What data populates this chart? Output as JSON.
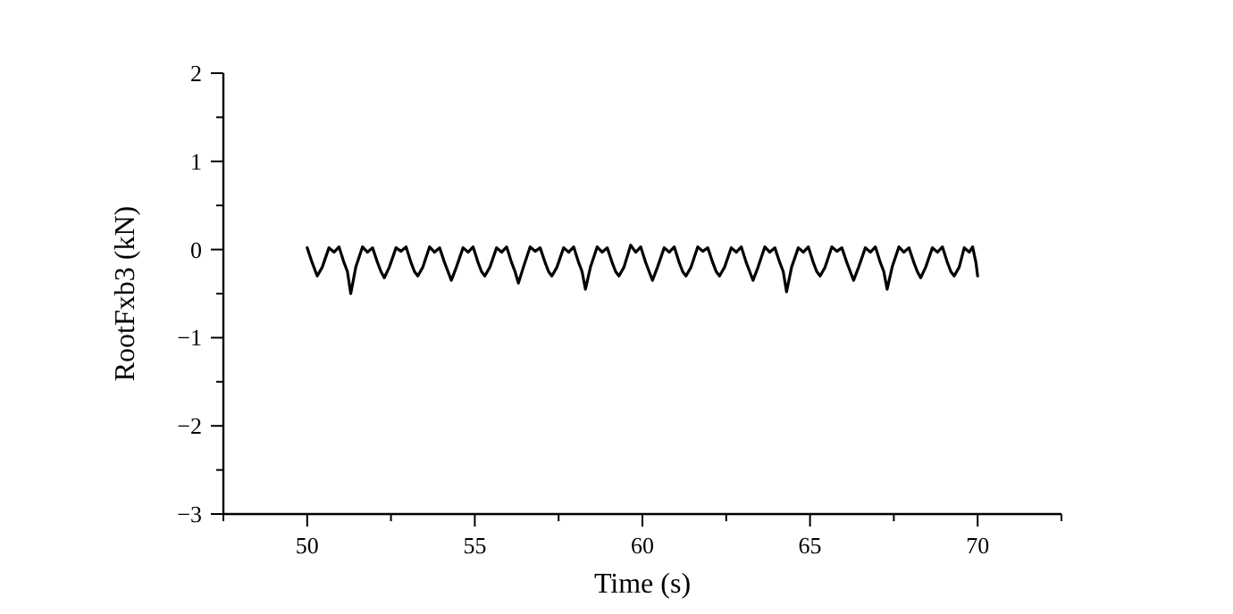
{
  "chart_data": {
    "type": "line",
    "xlabel": "Time (s)",
    "ylabel": "RootFxb3 (kN)",
    "xlim": [
      47.5,
      72.5
    ],
    "ylim": [
      -3,
      2
    ],
    "xticks": [
      {
        "value": 47.5,
        "label": null
      },
      50,
      {
        "value": 52.5,
        "label": null
      },
      55,
      {
        "value": 57.5,
        "label": null
      },
      60,
      {
        "value": 62.5,
        "label": null
      },
      65,
      {
        "value": 67.5,
        "label": null
      },
      70,
      {
        "value": 72.5,
        "label": null
      }
    ],
    "yticks": [
      -3,
      {
        "value": -2.5,
        "label": null
      },
      -2,
      {
        "value": -1.5,
        "label": null
      },
      -1,
      {
        "value": -0.5,
        "label": null
      },
      0,
      {
        "value": 0.5,
        "label": null
      },
      1,
      {
        "value": 1.5,
        "label": null
      },
      2
    ],
    "grid": false,
    "marker": "none",
    "line_style": "solid",
    "series": [
      {
        "color": "#000000",
        "x": [
          50.0,
          50.15,
          50.3,
          50.45,
          50.65,
          50.8,
          50.95,
          51.1,
          51.2,
          51.3,
          51.45,
          51.65,
          51.8,
          51.95,
          52.1,
          52.2,
          52.3,
          52.45,
          52.65,
          52.8,
          52.95,
          53.1,
          53.2,
          53.3,
          53.45,
          53.65,
          53.8,
          53.95,
          54.1,
          54.2,
          54.3,
          54.45,
          54.65,
          54.8,
          54.95,
          55.1,
          55.2,
          55.3,
          55.45,
          55.65,
          55.8,
          55.95,
          56.1,
          56.2,
          56.3,
          56.45,
          56.65,
          56.8,
          56.95,
          57.1,
          57.2,
          57.3,
          57.45,
          57.65,
          57.8,
          57.95,
          58.1,
          58.2,
          58.3,
          58.45,
          58.65,
          58.8,
          58.95,
          59.1,
          59.2,
          59.3,
          59.45,
          59.65,
          59.8,
          59.95,
          60.1,
          60.2,
          60.3,
          60.45,
          60.65,
          60.8,
          60.95,
          61.1,
          61.2,
          61.3,
          61.45,
          61.65,
          61.8,
          61.95,
          62.1,
          62.2,
          62.3,
          62.45,
          62.65,
          62.8,
          62.95,
          63.1,
          63.2,
          63.3,
          63.45,
          63.65,
          63.8,
          63.95,
          64.1,
          64.2,
          64.3,
          64.45,
          64.65,
          64.8,
          64.95,
          65.1,
          65.2,
          65.3,
          65.45,
          65.65,
          65.8,
          65.95,
          66.1,
          66.2,
          66.3,
          66.45,
          66.65,
          66.8,
          66.95,
          67.1,
          67.2,
          67.3,
          67.45,
          67.65,
          67.8,
          67.95,
          68.1,
          68.2,
          68.3,
          68.45,
          68.65,
          68.8,
          68.95,
          69.1,
          69.2,
          69.3,
          69.45,
          69.6,
          69.75,
          69.85,
          69.95,
          70.0
        ],
        "values": [
          0.02,
          -0.15,
          -0.3,
          -0.2,
          0.02,
          -0.03,
          0.03,
          -0.15,
          -0.25,
          -0.5,
          -0.2,
          0.03,
          -0.03,
          0.02,
          -0.15,
          -0.25,
          -0.32,
          -0.2,
          0.02,
          -0.02,
          0.03,
          -0.15,
          -0.25,
          -0.3,
          -0.2,
          0.03,
          -0.03,
          0.02,
          -0.15,
          -0.25,
          -0.35,
          -0.2,
          0.02,
          -0.03,
          0.03,
          -0.15,
          -0.25,
          -0.3,
          -0.2,
          0.02,
          -0.03,
          0.03,
          -0.15,
          -0.25,
          -0.38,
          -0.2,
          0.03,
          -0.02,
          0.02,
          -0.15,
          -0.25,
          -0.3,
          -0.2,
          0.02,
          -0.03,
          0.03,
          -0.15,
          -0.25,
          -0.45,
          -0.2,
          0.03,
          -0.03,
          0.02,
          -0.15,
          -0.25,
          -0.3,
          -0.2,
          0.05,
          -0.03,
          0.03,
          -0.15,
          -0.25,
          -0.35,
          -0.2,
          0.02,
          -0.03,
          0.03,
          -0.15,
          -0.25,
          -0.3,
          -0.2,
          0.03,
          -0.02,
          0.02,
          -0.15,
          -0.25,
          -0.3,
          -0.2,
          0.02,
          -0.03,
          0.03,
          -0.15,
          -0.25,
          -0.35,
          -0.2,
          0.03,
          -0.03,
          0.02,
          -0.15,
          -0.25,
          -0.48,
          -0.2,
          0.02,
          -0.03,
          0.03,
          -0.15,
          -0.25,
          -0.3,
          -0.2,
          0.03,
          -0.02,
          0.02,
          -0.15,
          -0.25,
          -0.35,
          -0.2,
          0.02,
          -0.03,
          0.03,
          -0.15,
          -0.25,
          -0.45,
          -0.2,
          0.03,
          -0.03,
          0.02,
          -0.15,
          -0.25,
          -0.32,
          -0.2,
          0.02,
          -0.03,
          0.03,
          -0.15,
          -0.25,
          -0.3,
          -0.2,
          0.02,
          -0.03,
          0.03,
          -0.15,
          -0.3
        ]
      }
    ]
  }
}
